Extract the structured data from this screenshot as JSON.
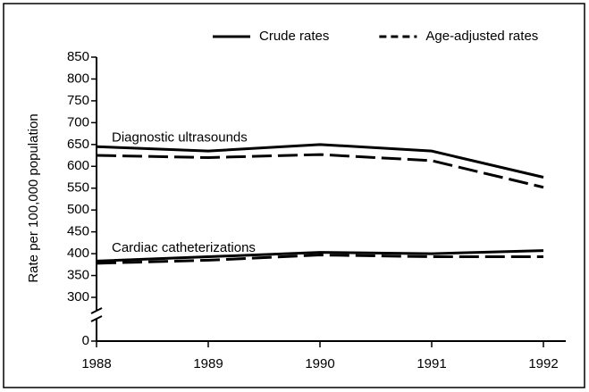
{
  "chart_data": {
    "type": "line",
    "y_label": "Rate per 100,000 population",
    "x": [
      1988,
      1989,
      1990,
      1991,
      1992
    ],
    "xlim": [
      1988,
      1992
    ],
    "xticks": [
      1988,
      1989,
      1990,
      1991,
      1992
    ],
    "ylim": [
      0,
      850
    ],
    "yticks": [
      0,
      300,
      350,
      400,
      450,
      500,
      550,
      600,
      650,
      700,
      750,
      800,
      850
    ],
    "axis_break": [
      0,
      300
    ],
    "legend": "top-right",
    "series": [
      {
        "name": "Crude rates",
        "color": "#000000",
        "dash": "solid",
        "values": [
          645,
          635,
          650,
          635,
          575
        ]
      },
      {
        "name": "Age-adjusted rates",
        "color": "#000000",
        "dash": "dashed",
        "values": [
          625,
          620,
          627,
          613,
          552
        ]
      },
      {
        "name": null,
        "color": "#000000",
        "dash": "solid",
        "values": [
          383,
          393,
          403,
          400,
          407
        ]
      },
      {
        "name": null,
        "color": "#000000",
        "dash": "dashed",
        "values": [
          378,
          385,
          397,
          393,
          393
        ]
      }
    ],
    "annotations": [
      {
        "text": "Diagnostic ultrasounds",
        "x": 1988,
        "y": 665
      },
      {
        "text": "Cardiac catheterizations",
        "x": 1988,
        "y": 412
      }
    ]
  }
}
